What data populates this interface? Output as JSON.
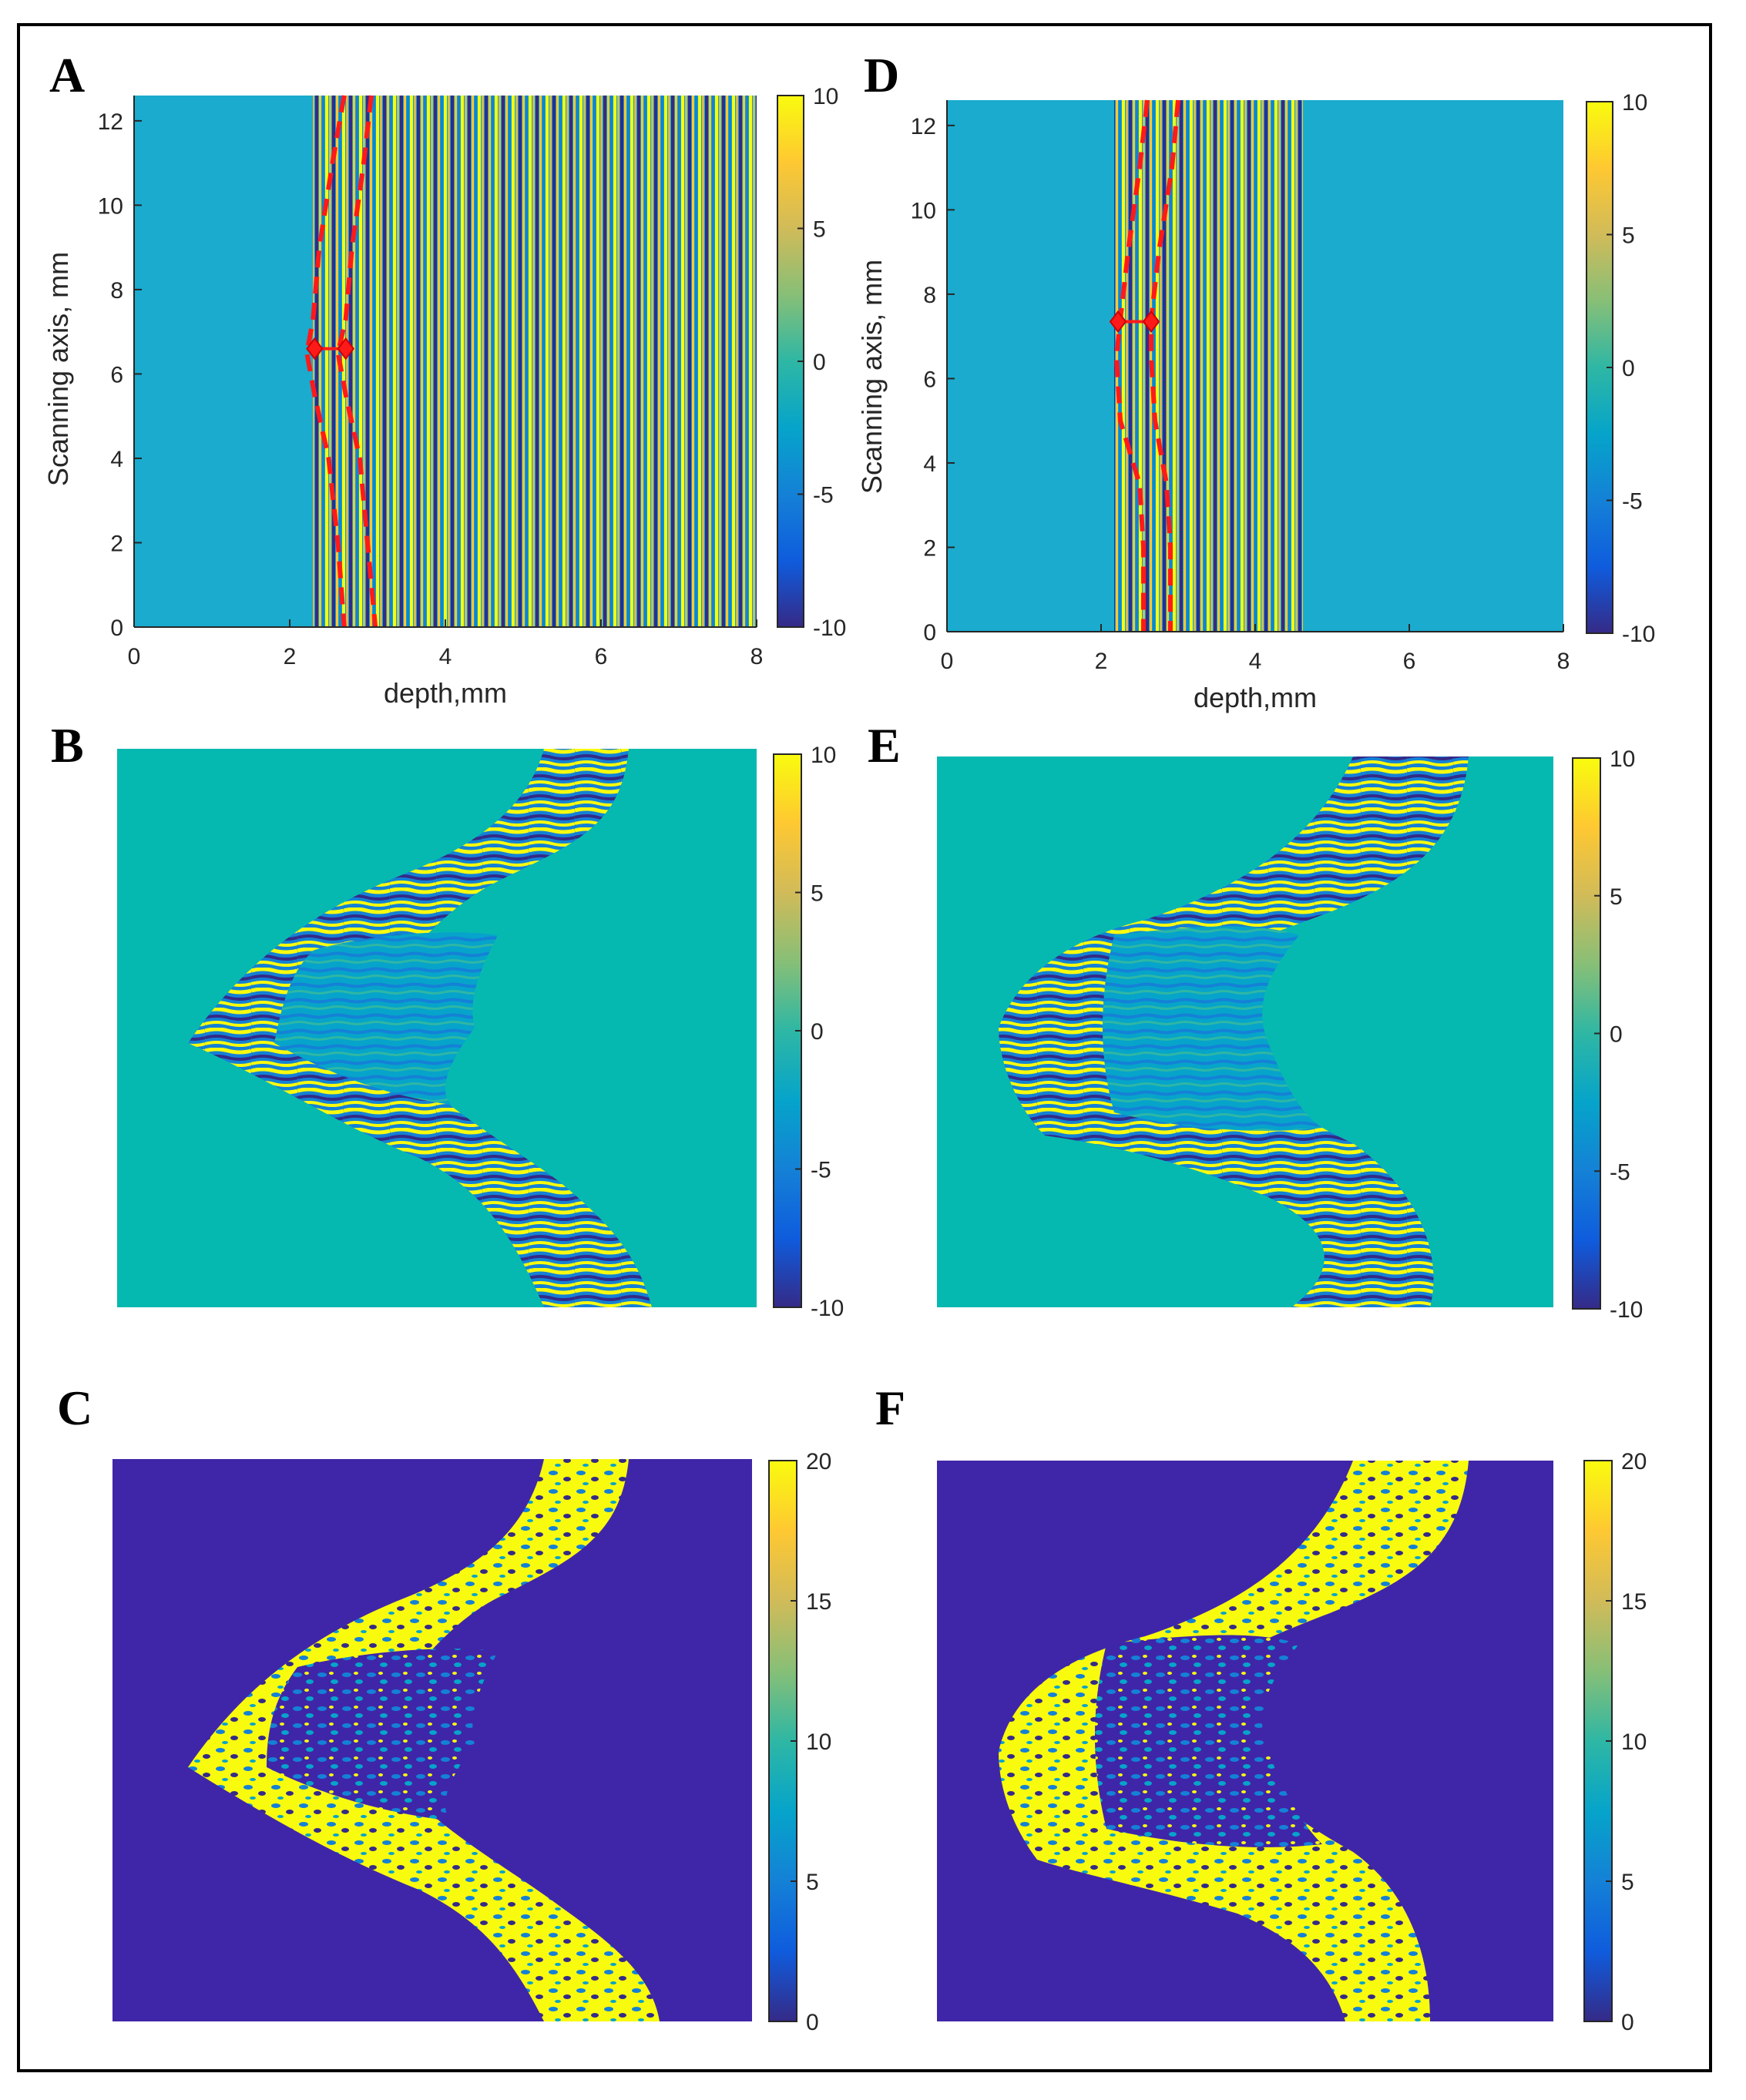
{
  "colors": {
    "parula": [
      "#352a87",
      "#0f5cdd",
      "#1481d6",
      "#06a4ca",
      "#2eb7a4",
      "#87bf77",
      "#d1bb59",
      "#fec832",
      "#f9fb0e"
    ],
    "outside_region_bc": "#06b9b0",
    "outside_region_c": "#3f26a8",
    "boundary_lines": "#ff1a1a"
  },
  "chart_data": [
    {
      "panel": "A",
      "type": "heatmap",
      "xlabel": "depth,mm",
      "ylabel": "Scanning axis, mm",
      "xlim": [
        0,
        8
      ],
      "ylim": [
        0,
        12.6
      ],
      "xticks": [
        0,
        2,
        4,
        6,
        8
      ],
      "yticks": [
        0,
        2,
        4,
        6,
        8,
        10,
        12
      ],
      "clim": [
        -10,
        10
      ],
      "colorbar_ticks": [
        10,
        5,
        0,
        -5,
        -10
      ],
      "boundary_lines": [
        {
          "style": "dashed",
          "points": [
            [
              2.7,
              12.6
            ],
            [
              2.55,
              11
            ],
            [
              2.38,
              9
            ],
            [
              2.3,
              7.3
            ],
            [
              2.22,
              6.5
            ],
            [
              2.32,
              5.5
            ],
            [
              2.5,
              4
            ],
            [
              2.62,
              2
            ],
            [
              2.7,
              0
            ]
          ]
        },
        {
          "style": "dashed",
          "points": [
            [
              3.05,
              12.6
            ],
            [
              2.95,
              11
            ],
            [
              2.8,
              9
            ],
            [
              2.72,
              7.3
            ],
            [
              2.62,
              6.5
            ],
            [
              2.72,
              5.5
            ],
            [
              2.9,
              4
            ],
            [
              3.0,
              2
            ],
            [
              3.1,
              0
            ]
          ]
        }
      ],
      "markers": [
        [
          2.32,
          6.6
        ],
        [
          2.72,
          6.6
        ]
      ]
    },
    {
      "panel": "D",
      "type": "heatmap",
      "xlabel": "depth,mm",
      "ylabel": "Scanning axis, mm",
      "xlim": [
        0,
        8
      ],
      "ylim": [
        0,
        12.6
      ],
      "xticks": [
        0,
        2,
        4,
        6,
        8
      ],
      "yticks": [
        0,
        2,
        4,
        6,
        8,
        10,
        12
      ],
      "clim": [
        -10,
        10
      ],
      "colorbar_ticks": [
        10,
        5,
        0,
        -5,
        -10
      ],
      "boundary_lines": [
        {
          "style": "dashed",
          "points": [
            [
              2.6,
              12.6
            ],
            [
              2.5,
              11
            ],
            [
              2.35,
              9
            ],
            [
              2.25,
              7.4
            ],
            [
              2.2,
              6.5
            ],
            [
              2.25,
              5
            ],
            [
              2.5,
              3.5
            ],
            [
              2.55,
              2
            ],
            [
              2.55,
              0
            ]
          ]
        },
        {
          "style": "dashed",
          "points": [
            [
              3.0,
              12.6
            ],
            [
              2.92,
              11
            ],
            [
              2.75,
              9
            ],
            [
              2.65,
              7.4
            ],
            [
              2.65,
              6.5
            ],
            [
              2.7,
              5
            ],
            [
              2.85,
              3.5
            ],
            [
              2.9,
              2
            ],
            [
              2.9,
              0
            ]
          ]
        }
      ],
      "markers": [
        [
          2.22,
          7.35
        ],
        [
          2.65,
          7.35
        ]
      ]
    },
    {
      "panel": "B",
      "type": "heatmap",
      "clim": [
        -10,
        10
      ],
      "colorbar_ticks": [
        10,
        5,
        0,
        -5,
        -10
      ]
    },
    {
      "panel": "E",
      "type": "heatmap",
      "clim": [
        -10,
        10
      ],
      "colorbar_ticks": [
        10,
        5,
        0,
        -5,
        -10
      ]
    },
    {
      "panel": "C",
      "type": "heatmap",
      "clim": [
        0,
        20
      ],
      "colorbar_ticks": [
        20,
        15,
        10,
        5,
        0
      ]
    },
    {
      "panel": "F",
      "type": "heatmap",
      "clim": [
        0,
        20
      ],
      "colorbar_ticks": [
        20,
        15,
        10,
        5,
        0
      ]
    }
  ]
}
